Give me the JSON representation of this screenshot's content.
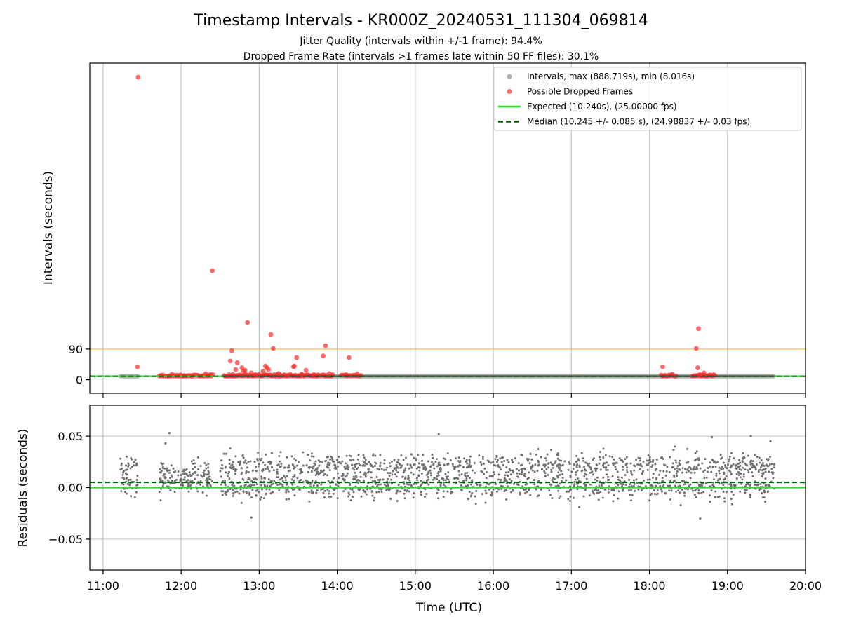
{
  "chart_data": {
    "title": "Timestamp Intervals - KR000Z_20240531_111304_069814",
    "subtitles": [
      "Jitter Quality (intervals within +/-1 frame): 94.4%",
      "Dropped Frame Rate (intervals >1 frames late within 50 FF files): 30.1%"
    ],
    "xlabel": "Time (UTC)",
    "x_ticks": [
      "11:00",
      "12:00",
      "13:00",
      "14:00",
      "15:00",
      "16:00",
      "17:00",
      "18:00",
      "19:00",
      "20:00"
    ],
    "xlim_hours": [
      10.83,
      20.0
    ],
    "grid": true,
    "panels": [
      {
        "id": "intervals",
        "type": "scatter",
        "ylabel": "Intervals (seconds)",
        "y_ticks": [
          0,
          90
        ],
        "ylim": [
          -40,
          930
        ],
        "legend_position": "top-right",
        "legend": [
          {
            "label": "Intervals, max (888.719s), min (8.016s)",
            "kind": "point",
            "color": "#a9a9a9"
          },
          {
            "label": "Possible Dropped Frames",
            "kind": "point",
            "color": "#ff3b3b"
          },
          {
            "label": "Expected (10.240s), (25.00000 fps)",
            "kind": "line",
            "color": "#22e022"
          },
          {
            "label": "Median (10.245 +/- 0.085 s), (24.98837 +/- 0.03 fps)",
            "kind": "dashed",
            "color": "#006400"
          }
        ],
        "reference_lines": {
          "expected": 10.24,
          "median": 10.245,
          "threshold": 90,
          "threshold_color": "#ffc04d"
        },
        "normal_segments": [
          [
            11.22,
            11.45
          ],
          [
            11.72,
            12.4
          ],
          [
            12.55,
            19.6
          ]
        ],
        "dropped_points": [
          [
            11.45,
            888.7
          ],
          [
            11.44,
            38
          ],
          [
            12.4,
            320
          ],
          [
            12.85,
            168
          ],
          [
            13.15,
            133
          ],
          [
            13.18,
            92
          ],
          [
            13.85,
            100
          ],
          [
            13.82,
            70
          ],
          [
            13.48,
            65
          ],
          [
            13.44,
            38
          ],
          [
            13.45,
            40
          ],
          [
            12.65,
            85
          ],
          [
            12.63,
            55
          ],
          [
            12.7,
            30
          ],
          [
            12.72,
            50
          ],
          [
            12.78,
            35
          ],
          [
            12.8,
            25
          ],
          [
            12.82,
            28
          ],
          [
            12.9,
            20
          ],
          [
            12.95,
            15
          ],
          [
            13.05,
            25
          ],
          [
            13.08,
            40
          ],
          [
            13.1,
            35
          ],
          [
            13.12,
            30
          ],
          [
            13.25,
            18
          ],
          [
            13.35,
            12
          ],
          [
            13.55,
            15
          ],
          [
            13.6,
            28
          ],
          [
            13.7,
            15
          ],
          [
            13.9,
            18
          ],
          [
            14.15,
            65
          ],
          [
            18.17,
            38
          ],
          [
            18.6,
            92
          ],
          [
            18.63,
            150
          ],
          [
            18.62,
            35
          ],
          [
            18.65,
            15
          ],
          [
            18.7,
            20
          ]
        ],
        "dropped_baseline_ranges": [
          [
            11.72,
            12.42
          ],
          [
            12.55,
            13.95
          ],
          [
            14.05,
            14.32
          ],
          [
            18.15,
            18.35
          ],
          [
            18.55,
            18.85
          ]
        ]
      },
      {
        "id": "residuals",
        "type": "scatter",
        "ylabel": "Residuals (seconds)",
        "y_ticks": [
          -0.05,
          0.0,
          0.05
        ],
        "y_tick_labels": [
          "−0.05",
          "0.00",
          "0.05"
        ],
        "ylim": [
          -0.08,
          0.08
        ],
        "reference_lines": {
          "expected": 0.0,
          "median": 0.005
        },
        "point_color": "#707070",
        "clusters": [
          {
            "range": [
              11.22,
              11.45
            ],
            "upper": 0.021,
            "lower": 0.001
          },
          {
            "range": [
              11.72,
              12.4
            ],
            "upper": 0.013,
            "lower": 0.005
          },
          {
            "range": [
              12.5,
              19.6
            ],
            "upper": 0.021,
            "lower": 0.001
          }
        ],
        "outliers": [
          [
            11.8,
            0.043
          ],
          [
            11.85,
            0.053
          ],
          [
            12.9,
            -0.029
          ],
          [
            15.3,
            0.052
          ],
          [
            18.8,
            0.049
          ],
          [
            19.3,
            0.05
          ],
          [
            19.55,
            0.045
          ],
          [
            18.65,
            -0.03
          ]
        ]
      }
    ]
  }
}
